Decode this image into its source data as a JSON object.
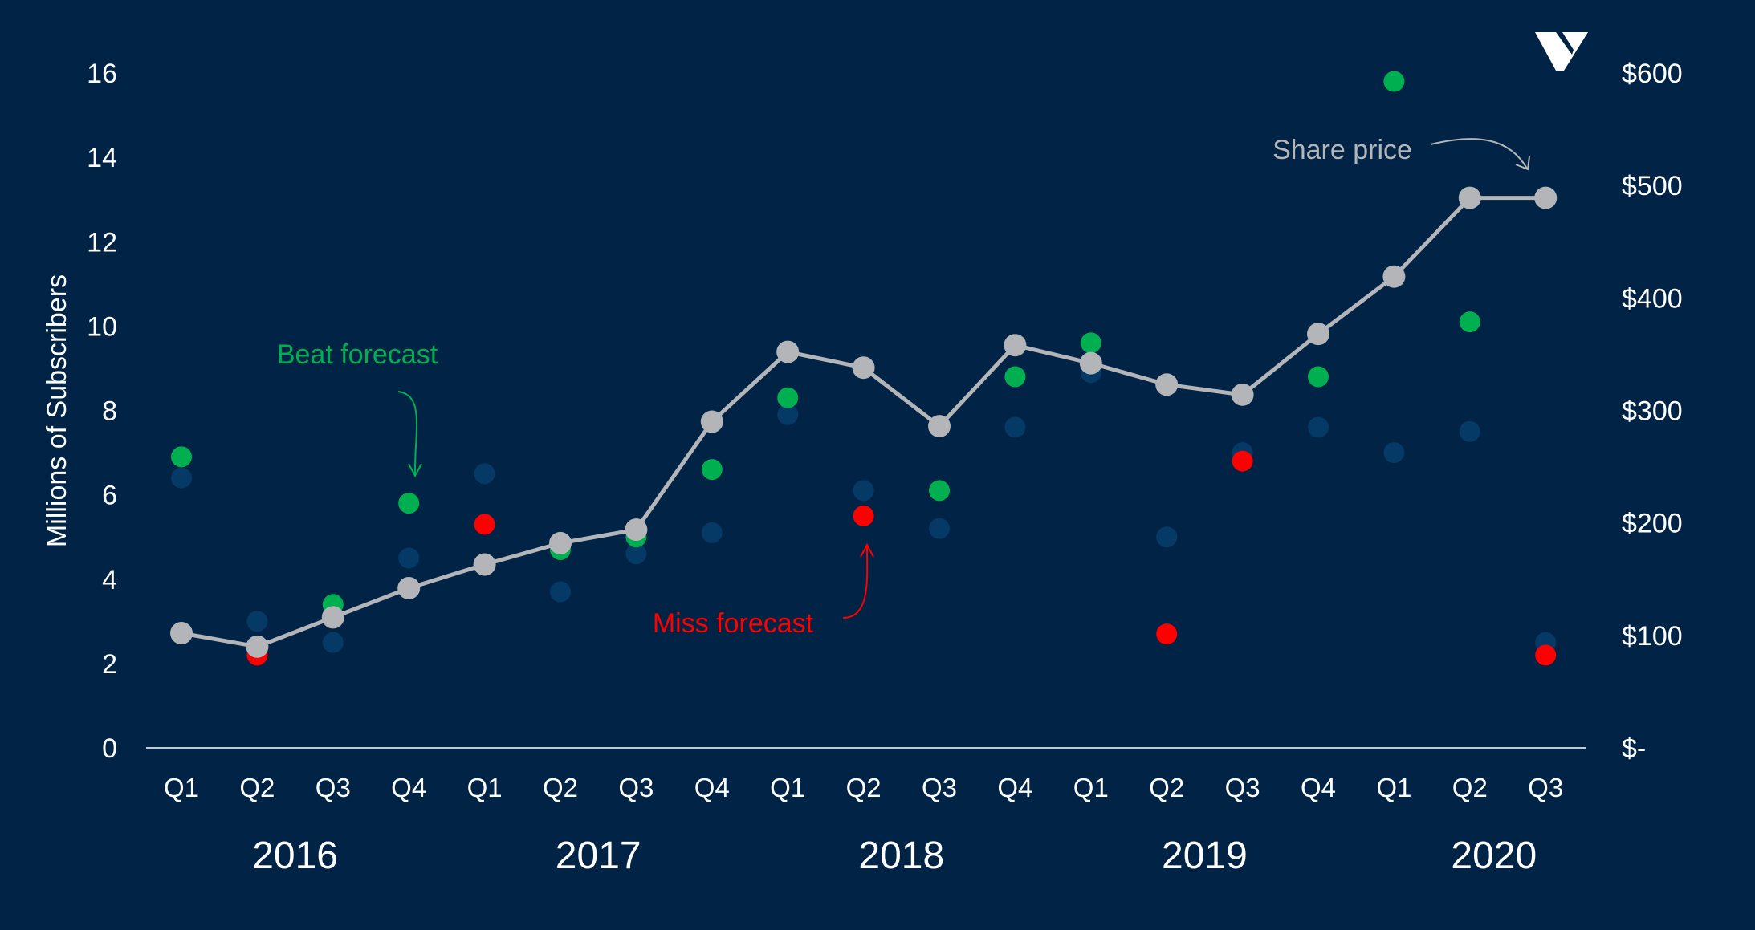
{
  "chart_data": {
    "type": "scatter",
    "title": "",
    "ylabel_left": "Millions of Subscribers",
    "ylabel_right": "",
    "y_left_range": [
      0,
      16
    ],
    "y_left_ticks": [
      "0",
      "2",
      "4",
      "6",
      "8",
      "10",
      "12",
      "14",
      "16"
    ],
    "y_right_range": [
      0,
      600
    ],
    "y_right_ticks": [
      "$-",
      "$100",
      "$200",
      "$300",
      "$400",
      "$500",
      "$600"
    ],
    "grid": false,
    "categories": [
      "Q1",
      "Q2",
      "Q3",
      "Q4",
      "Q1",
      "Q2",
      "Q3",
      "Q4",
      "Q1",
      "Q2",
      "Q3",
      "Q4",
      "Q1",
      "Q2",
      "Q3",
      "Q4",
      "Q1",
      "Q2",
      "Q3"
    ],
    "year_labels": [
      {
        "label": "2016",
        "quarter_start": 0,
        "quarter_end": 3
      },
      {
        "label": "2017",
        "quarter_start": 4,
        "quarter_end": 7
      },
      {
        "label": "2018",
        "quarter_start": 8,
        "quarter_end": 11
      },
      {
        "label": "2019",
        "quarter_start": 12,
        "quarter_end": 15
      },
      {
        "label": "2020",
        "quarter_start": 16,
        "quarter_end": 18
      }
    ],
    "series": [
      {
        "name": "",
        "type": "scatter",
        "axis": "left",
        "color": "#053a66",
        "values": [
          6.4,
          3.0,
          2.5,
          4.5,
          6.5,
          3.7,
          4.6,
          5.1,
          7.9,
          6.1,
          5.2,
          7.6,
          8.9,
          5.0,
          7.0,
          7.6,
          7.0,
          7.5,
          2.5
        ]
      },
      {
        "name": "",
        "type": "scatter",
        "axis": "left",
        "actual": [
          6.9,
          2.2,
          3.4,
          5.8,
          5.3,
          4.7,
          5.0,
          6.6,
          8.3,
          5.5,
          6.1,
          8.8,
          9.6,
          2.7,
          6.8,
          8.8,
          15.8,
          10.1,
          2.2
        ],
        "outcome": [
          "beat",
          "miss",
          "beat",
          "beat",
          "miss",
          "beat",
          "beat",
          "beat",
          "beat",
          "miss",
          "beat",
          "beat",
          "beat",
          "miss",
          "miss",
          "beat",
          "beat",
          "beat",
          "miss"
        ]
      },
      {
        "name": "",
        "type": "line",
        "axis": "right",
        "color": "#b3b5b8",
        "values": [
          102,
          90,
          116,
          142,
          163,
          182,
          194,
          290,
          352,
          338,
          286,
          358,
          342,
          323,
          314,
          368,
          419,
          489,
          489
        ]
      }
    ],
    "colors": {
      "background": "#012345",
      "beat": "#00b050",
      "miss": "#ff0000",
      "forecast": "#053a66",
      "share_price": "#b3b5b8",
      "text": "#ffffff"
    },
    "annotations": {
      "beat": "Beat forecast",
      "miss": "Miss forecast",
      "share_price": "Share price"
    }
  }
}
